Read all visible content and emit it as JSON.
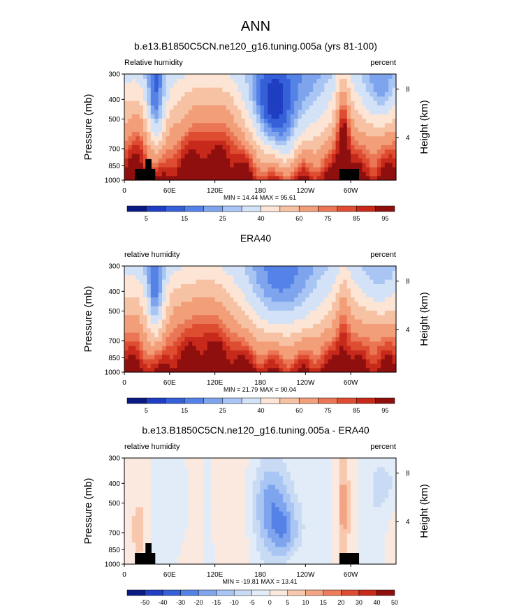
{
  "page": {
    "main_title": "ANN"
  },
  "palettes": {
    "rh": [
      "#0a1a80",
      "#1f3ec2",
      "#3560d8",
      "#5482e6",
      "#7ea4ee",
      "#a8c5f3",
      "#d3e2f6",
      "#fde5d6",
      "#f7c2a4",
      "#f29e78",
      "#ea7655",
      "#de4d31",
      "#c7291a",
      "#8f0f0f"
    ],
    "diff": [
      "#0a1a80",
      "#1f3ec2",
      "#3560d8",
      "#5482e6",
      "#7ea4ee",
      "#a8c5f3",
      "#c9dbf4",
      "#e2ecf8",
      "#fbe9e0",
      "#f7c7ae",
      "#f2a585",
      "#ec7c5b",
      "#de4d31",
      "#c7291a",
      "#8f0f0f"
    ]
  },
  "chart_data": [
    {
      "type": "heatmap",
      "title": "b.e13.B1850C5CN.ne120_g16.tuning.005a (yrs 81-100)",
      "left_label": "Relative humidity",
      "right_label": "percent",
      "ylabel": "Pressure (mb)",
      "ylabel_right": "Height (km)",
      "x_ticks": [
        "0",
        "60E",
        "120E",
        "180",
        "120W",
        "60W"
      ],
      "x_range": [
        0,
        360
      ],
      "y_ticks": [
        "300",
        "400",
        "500",
        "700",
        "850",
        "1000"
      ],
      "y_ticks_right": [
        "8",
        "4"
      ],
      "y_range": [
        1000,
        300
      ],
      "min_max_text": "MIN =  14.44  MAX =  95.61",
      "colorbar_labels": [
        "5",
        "15",
        "25",
        "40",
        "60",
        "75",
        "85",
        "95"
      ],
      "colorbar_levels": [
        5,
        10,
        15,
        20,
        25,
        30,
        40,
        50,
        60,
        70,
        75,
        80,
        85,
        90,
        95
      ],
      "palette": "rh",
      "field": "model"
    },
    {
      "type": "heatmap",
      "title": "ERA40",
      "left_label": "relative humidity",
      "right_label": "percent",
      "ylabel": "Pressure (mb)",
      "ylabel_right": "Height (km)",
      "x_ticks": [
        "0",
        "60E",
        "120E",
        "180",
        "120W",
        "60W"
      ],
      "x_range": [
        0,
        360
      ],
      "y_ticks": [
        "300",
        "400",
        "500",
        "700",
        "850",
        "1000"
      ],
      "y_ticks_right": [
        "8",
        "4"
      ],
      "y_range": [
        1000,
        300
      ],
      "min_max_text": "MIN =  21.79  MAX =  90.04",
      "colorbar_labels": [
        "5",
        "15",
        "25",
        "40",
        "60",
        "75",
        "85",
        "95"
      ],
      "colorbar_levels": [
        5,
        10,
        15,
        20,
        25,
        30,
        40,
        50,
        60,
        70,
        75,
        80,
        85,
        90,
        95
      ],
      "palette": "rh",
      "field": "obs"
    },
    {
      "type": "heatmap",
      "title": "b.e13.B1850C5CN.ne120_g16.tuning.005a - ERA40",
      "left_label": "relative humidity",
      "right_label": "percent",
      "ylabel": "Pressure (mb)",
      "ylabel_right": "Height (km)",
      "x_ticks": [
        "0",
        "60E",
        "120E",
        "180",
        "120W",
        "60W"
      ],
      "x_range": [
        0,
        360
      ],
      "y_ticks": [
        "300",
        "400",
        "500",
        "700",
        "850",
        "1000"
      ],
      "y_ticks_right": [
        "8",
        "4"
      ],
      "y_range": [
        1000,
        300
      ],
      "min_max_text": "MIN = -19.81  MAX =  13.41",
      "colorbar_labels": [
        "-50",
        "-40",
        "-30",
        "-20",
        "-15",
        "-10",
        "-5",
        "0",
        "5",
        "10",
        "15",
        "20",
        "30",
        "40",
        "50"
      ],
      "colorbar_levels": [
        -50,
        -40,
        -30,
        -20,
        -15,
        -10,
        -5,
        0,
        5,
        10,
        15,
        20,
        30,
        40,
        50
      ],
      "palette": "diff",
      "field": "diff"
    }
  ]
}
